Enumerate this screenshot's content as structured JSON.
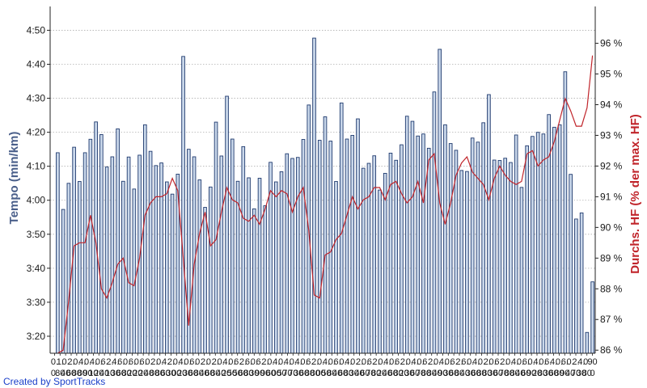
{
  "chart_data": {
    "type": "bar",
    "title": "",
    "ylabel": "Tempo (min/km)",
    "y2label": "Durchs. HF (% der max. HF)",
    "credit": "Created by SportTracks",
    "y_ticks": [
      "3:20",
      "3:30",
      "3:40",
      "3:50",
      "4:00",
      "4:10",
      "4:20",
      "4:30",
      "4:40",
      "4:50"
    ],
    "y_range_minutes": [
      3.25,
      4.95
    ],
    "y2_ticks": [
      "86 %",
      "87 %",
      "88 %",
      "89 %",
      "90 %",
      "91 %",
      "92 %",
      "93 %",
      "94 %",
      "95 %",
      "96 %"
    ],
    "y2_range": [
      85.9,
      97.2
    ],
    "grid": true,
    "x_ticks_row1": [
      "0.",
      "1.",
      "0.",
      "2.",
      "0.",
      "4.",
      "0.",
      "4.",
      "0.",
      "6.",
      "2.",
      "4.",
      "6.",
      "0.",
      "6.",
      "0.",
      "6.",
      "0.",
      "2.",
      "0.",
      "4.",
      "2.",
      "0.",
      "4.",
      "0.",
      "6.",
      "0.",
      "2.",
      "0.",
      "2.",
      "0.",
      "4.",
      "0.",
      "6.",
      "2.",
      "6.",
      "0.",
      "6.",
      "2.",
      "0.",
      "4.",
      "0.",
      "4.",
      "0.",
      "4.",
      "0.",
      "6.",
      "2.",
      "0.",
      "4.",
      "0.",
      "6.",
      "0.",
      "4.",
      "0.",
      "2.",
      "0.",
      "6.",
      "2.",
      "0.",
      "4.",
      "0.",
      "6.",
      "2.",
      "0.",
      "4.",
      "0.",
      "6.",
      "2.",
      "0.",
      "4.",
      "0.",
      "6.",
      "2.",
      "6.",
      "0.",
      "4.",
      "0.",
      "2.",
      "0.",
      "6.",
      "2.",
      "0.",
      "4.",
      "0.",
      "6.",
      "0.",
      "4.",
      "0.",
      "6.",
      "4.",
      "0.",
      "6.",
      "0.",
      "2.",
      "4.",
      "0.",
      "90"
    ],
    "x_ticks_row2": [
      "0.",
      "80",
      "40",
      "60",
      "80",
      "80",
      "90",
      "10",
      "20",
      "40",
      "10",
      "30",
      "60",
      "80",
      "20",
      "20",
      "20",
      "40",
      "80",
      "80",
      "60",
      "30",
      "00",
      "20",
      "30",
      "60",
      "80",
      "40",
      "60",
      "80",
      "40",
      "20",
      "50",
      "50",
      "60",
      "80",
      "30",
      "90",
      "90",
      "60",
      "00",
      "50",
      "70",
      "70",
      "30",
      "60",
      "80",
      "80",
      "00",
      "50",
      "80",
      "40",
      "60",
      "80",
      "30",
      "40",
      "60",
      "70",
      "80",
      "20",
      "40",
      "60",
      "80",
      "20",
      "30",
      "60",
      "70",
      "80",
      "80",
      "40",
      "90",
      "30",
      "60",
      "80",
      "40",
      "30",
      "60",
      "80",
      "80",
      "30",
      "60",
      "70",
      "80",
      "80",
      "40",
      "60",
      "90",
      "20",
      "80",
      "30",
      "60",
      "80",
      "90",
      "40",
      "70",
      "30",
      "80",
      "0"
    ],
    "series": [
      {
        "name": "",
        "type": "bar",
        "unit": "min/km",
        "values": [
          4.233,
          3.955,
          4.083,
          4.26,
          4.092,
          4.233,
          4.299,
          4.384,
          4.322,
          4.163,
          4.213,
          4.35,
          4.093,
          4.212,
          4.055,
          4.221,
          4.37,
          4.24,
          4.17,
          4.183,
          4.09,
          4.03,
          4.128,
          4.705,
          4.25,
          4.213,
          4.1,
          3.965,
          4.065,
          4.383,
          4.217,
          4.51,
          4.3,
          4.093,
          4.263,
          4.11,
          3.958,
          4.108,
          3.973,
          4.186,
          4.09,
          4.14,
          4.228,
          4.205,
          4.21,
          4.298,
          4.467,
          4.795,
          4.294,
          4.409,
          4.29,
          4.092,
          4.477,
          4.3,
          4.318,
          4.399,
          4.157,
          4.181,
          4.218,
          4.05,
          4.132,
          4.231,
          4.196,
          4.272,
          4.412,
          4.387,
          4.315,
          4.325,
          4.255,
          4.531,
          4.74,
          4.37,
          4.278,
          4.245,
          4.146,
          4.141,
          4.305,
          4.285,
          4.38,
          4.518,
          4.197,
          4.195,
          4.206,
          4.185,
          4.32,
          4.063,
          4.267,
          4.313,
          4.333,
          4.325,
          4.42,
          4.358,
          4.37,
          4.63,
          4.127,
          3.908,
          3.938,
          3.352,
          3.6
        ]
      },
      {
        "name": "",
        "type": "line",
        "unit": "% der max. HF",
        "values": [
          85.5,
          86.0,
          87.6,
          89.4,
          89.5,
          89.5,
          90.4,
          89.5,
          88.0,
          87.7,
          88.2,
          88.8,
          89.0,
          88.2,
          88.1,
          89.0,
          90.4,
          90.8,
          91.0,
          91.0,
          91.1,
          91.6,
          91.2,
          89.0,
          86.8,
          88.8,
          89.8,
          90.5,
          89.4,
          89.6,
          90.5,
          91.3,
          90.9,
          90.8,
          90.3,
          90.2,
          90.4,
          90.1,
          90.6,
          91.2,
          91.0,
          91.2,
          91.1,
          90.5,
          91.0,
          91.3,
          89.9,
          87.8,
          87.7,
          89.1,
          89.2,
          89.6,
          89.8,
          90.4,
          91.0,
          90.6,
          90.9,
          91.0,
          91.3,
          91.3,
          90.9,
          91.4,
          91.5,
          91.1,
          90.8,
          91.0,
          91.5,
          90.8,
          92.2,
          92.4,
          90.8,
          90.1,
          90.8,
          91.7,
          92.1,
          92.3,
          91.8,
          91.6,
          91.4,
          90.9,
          91.6,
          92.0,
          91.7,
          91.5,
          91.4,
          91.5,
          92.4,
          92.5,
          92.0,
          92.2,
          92.3,
          92.8,
          93.5,
          94.2,
          93.8,
          93.3,
          93.3,
          93.9,
          95.6
        ]
      }
    ]
  },
  "colors": {
    "bar_fill": "#c9d7ea",
    "bar_edge": "#1f3a6e",
    "line": "#c0242a",
    "grid": "#b0b0b0",
    "axis": "#222222",
    "credit": "#1a3fc9"
  }
}
